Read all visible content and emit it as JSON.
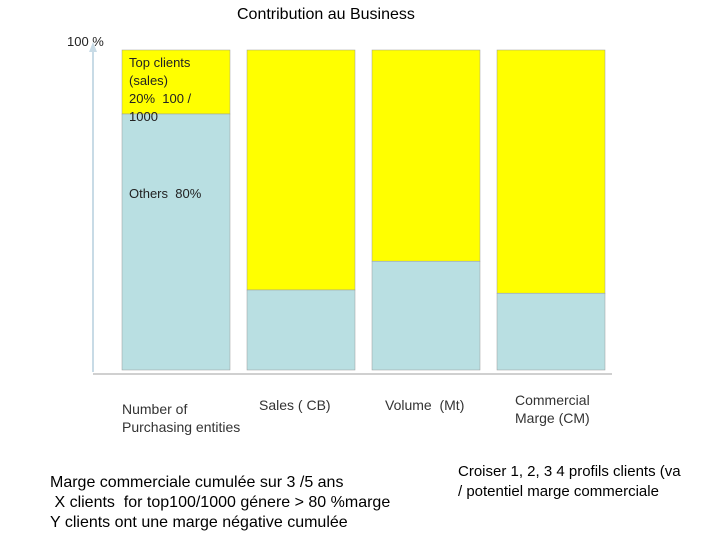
{
  "chart_data": {
    "type": "stacked_bar",
    "title": "Contribution au Business",
    "categories": [
      "Number of\nPurchasing entities",
      "Sales ( CB)",
      "Volume  (Mt)",
      "Commercial\nMarge (CM)"
    ],
    "series": [
      {
        "color": "#b9dfe2",
        "values": [
          80,
          25,
          34,
          24
        ]
      },
      {
        "color": "#ffff00",
        "values": [
          20,
          75,
          66,
          76
        ]
      }
    ],
    "ylim": [
      0,
      100
    ],
    "yticks": [
      {
        "value": 100,
        "label": "100 %"
      }
    ],
    "annotations": [
      "Top clients\n(sales)\n20%  100 /\n1000",
      "Others  80%"
    ],
    "notes": [
      "Marge commerciale cumulée sur 3 /5 ans\n X clients  for top100/1000 génere > 80 %marge\nY clients ont une marge négative cumulée",
      "Croiser 1, 2, 3 4 profils clients (va\n/ potentiel marge commerciale"
    ]
  }
}
